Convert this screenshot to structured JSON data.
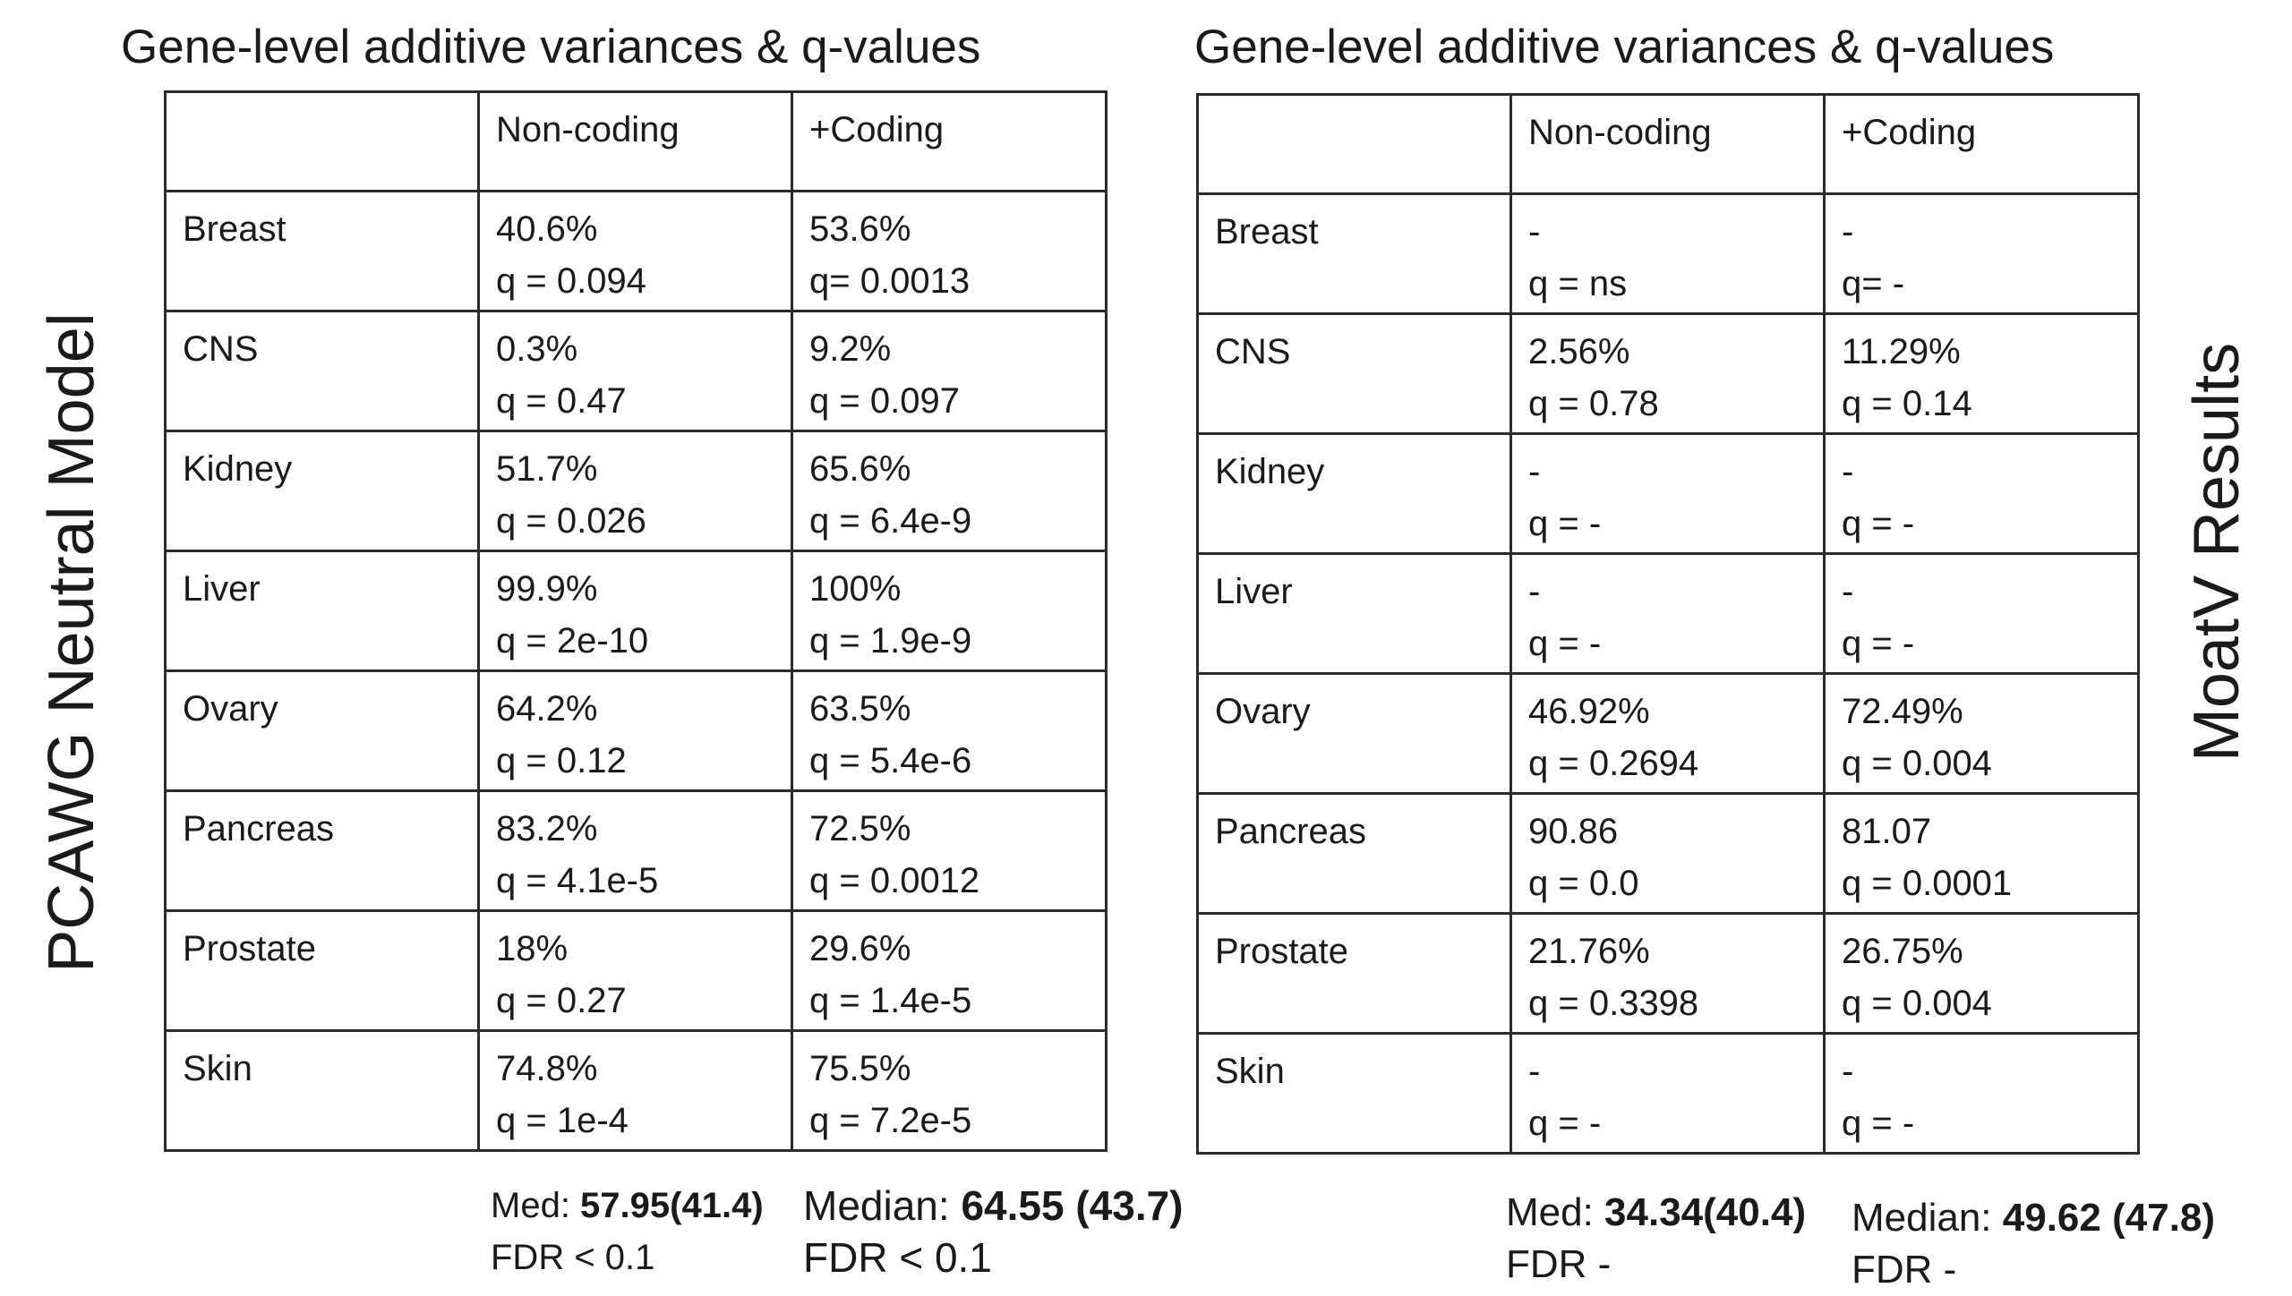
{
  "left": {
    "title": "Gene-level additive variances & q-values",
    "side_label": "PCAWG Neutral Model",
    "headers": [
      "",
      "Non-coding",
      "+Coding"
    ],
    "rows": [
      {
        "label": "Breast",
        "nc_pct": "40.6%",
        "nc_q": "q = 0.094",
        "c_pct": "53.6%",
        "c_q": "q= 0.0013"
      },
      {
        "label": "CNS",
        "nc_pct": "0.3%",
        "nc_q": "q = 0.47",
        "c_pct": "9.2%",
        "c_q": "q = 0.097"
      },
      {
        "label": "Kidney",
        "nc_pct": "51.7%",
        "nc_q": "q = 0.026",
        "c_pct": "65.6%",
        "c_q": "q = 6.4e-9"
      },
      {
        "label": "Liver",
        "nc_pct": "99.9%",
        "nc_q": "q = 2e-10",
        "c_pct": "100%",
        "c_q": "q = 1.9e-9"
      },
      {
        "label": "Ovary",
        "nc_pct": "64.2%",
        "nc_q": "q = 0.12",
        "c_pct": "63.5%",
        "c_q": "q = 5.4e-6"
      },
      {
        "label": "Pancreas",
        "nc_pct": "83.2%",
        "nc_q": "q = 4.1e-5",
        "c_pct": "72.5%",
        "c_q": "q = 0.0012"
      },
      {
        "label": "Prostate",
        "nc_pct": "18%",
        "nc_q": "q = 0.27",
        "c_pct": "29.6%",
        "c_q": "q = 1.4e-5"
      },
      {
        "label": "Skin",
        "nc_pct": "74.8%",
        "nc_q": "q = 1e-4",
        "c_pct": "75.5%",
        "c_q": "q = 7.2e-5"
      }
    ],
    "summary_nc": {
      "prefix": "Med: ",
      "value": "57.95(41.4)",
      "fdr": "FDR < 0.1"
    },
    "summary_c": {
      "prefix": "Median: ",
      "value": "64.55 (43.7)",
      "fdr": "FDR < 0.1"
    }
  },
  "right": {
    "title": "Gene-level additive variances & q-values",
    "side_label": "MoatV Results",
    "headers": [
      "",
      "Non-coding",
      "+Coding"
    ],
    "rows": [
      {
        "label": "Breast",
        "nc_pct": "-",
        "nc_q": "q = ns",
        "c_pct": "-",
        "c_q": "q= -"
      },
      {
        "label": "CNS",
        "nc_pct": "2.56%",
        "nc_q": "q = 0.78",
        "c_pct": "11.29%",
        "c_q": "q = 0.14"
      },
      {
        "label": "Kidney",
        "nc_pct": "-",
        "nc_q": "q = -",
        "c_pct": "-",
        "c_q": "q = -"
      },
      {
        "label": "Liver",
        "nc_pct": "-",
        "nc_q": "q = -",
        "c_pct": "-",
        "c_q": "q = -"
      },
      {
        "label": "Ovary",
        "nc_pct": "46.92%",
        "nc_q": "q = 0.2694",
        "c_pct": "72.49%",
        "c_q": "q = 0.004"
      },
      {
        "label": "Pancreas",
        "nc_pct": "90.86",
        "nc_q": "q = 0.0",
        "c_pct": "81.07",
        "c_q": "q = 0.0001"
      },
      {
        "label": "Prostate",
        "nc_pct": "21.76%",
        "nc_q": "q = 0.3398",
        "c_pct": "26.75%",
        "c_q": "q = 0.004"
      },
      {
        "label": "Skin",
        "nc_pct": "-",
        "nc_q": "q = -",
        "c_pct": "-",
        "c_q": "q = -"
      }
    ],
    "summary_nc": {
      "prefix": "Med: ",
      "value": "34.34(40.4)",
      "fdr": "FDR -"
    },
    "summary_c": {
      "prefix": "Median: ",
      "value": "49.62 (47.8)",
      "fdr": "FDR -"
    }
  }
}
